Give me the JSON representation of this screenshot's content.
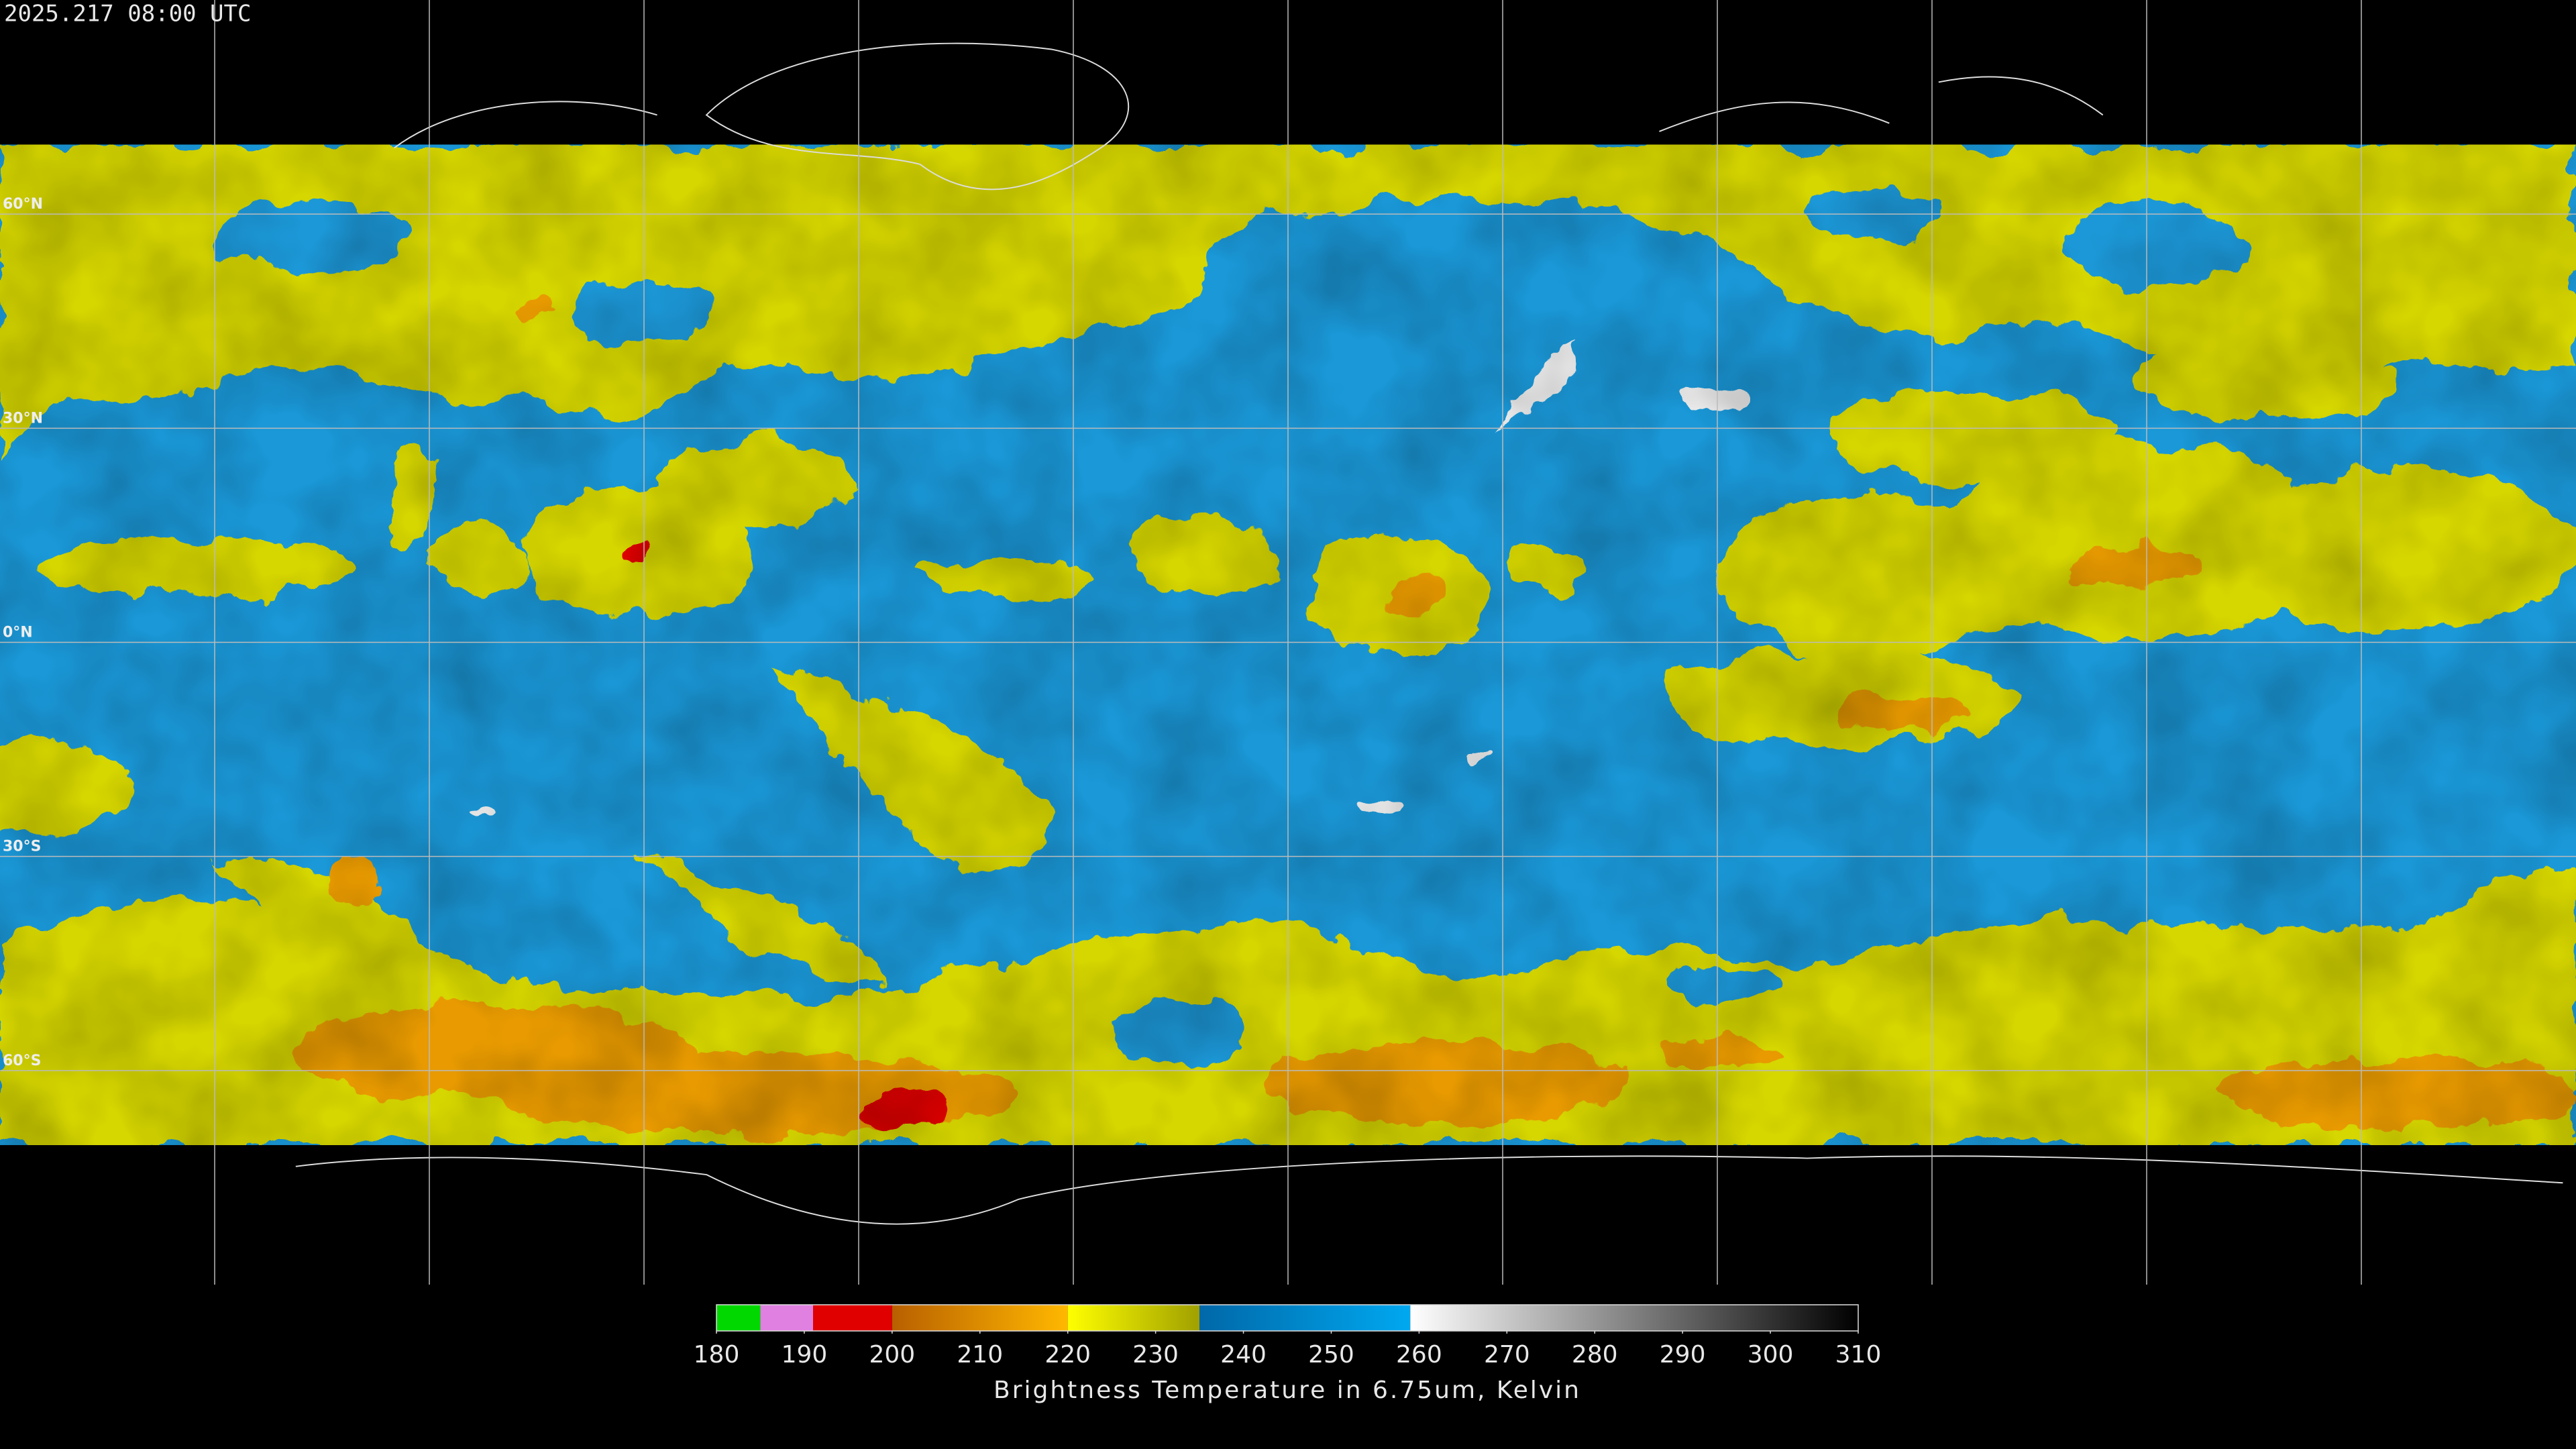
{
  "header": {
    "timestamp": "2025.217 08:00 UTC"
  },
  "map": {
    "lon_range": [
      -180,
      180
    ],
    "lat_range": [
      -90,
      90
    ],
    "lon_grid": [
      -150,
      -120,
      -90,
      -60,
      -30,
      0,
      30,
      60,
      90,
      120,
      150
    ],
    "lat_grid": [
      {
        "value": 60,
        "label": "60°N"
      },
      {
        "value": 30,
        "label": "30°N"
      },
      {
        "value": 0,
        "label": "0°N"
      },
      {
        "value": -30,
        "label": "30°S"
      },
      {
        "value": -60,
        "label": "60°S"
      }
    ]
  },
  "colorbar": {
    "range": [
      180,
      310
    ],
    "ticks": [
      180,
      190,
      200,
      210,
      220,
      230,
      240,
      250,
      260,
      270,
      280,
      290,
      300,
      310
    ],
    "label": "Brightness Temperature in 6.75um, Kelvin",
    "segments": [
      {
        "from": 180,
        "to": 185,
        "colors": [
          "#00d800",
          "#00d800"
        ]
      },
      {
        "from": 185,
        "to": 191,
        "colors": [
          "#e080e0",
          "#e080e0"
        ]
      },
      {
        "from": 191,
        "to": 200,
        "colors": [
          "#e00000",
          "#e00000"
        ]
      },
      {
        "from": 200,
        "to": 220,
        "colors": [
          "#b86000",
          "#ffb800"
        ]
      },
      {
        "from": 220,
        "to": 235,
        "colors": [
          "#ffff00",
          "#a0a000"
        ]
      },
      {
        "from": 235,
        "to": 259,
        "colors": [
          "#0068a8",
          "#00a8f0"
        ]
      },
      {
        "from": 259,
        "to": 310,
        "colors": [
          "#ffffff",
          "#000000"
        ]
      }
    ]
  }
}
